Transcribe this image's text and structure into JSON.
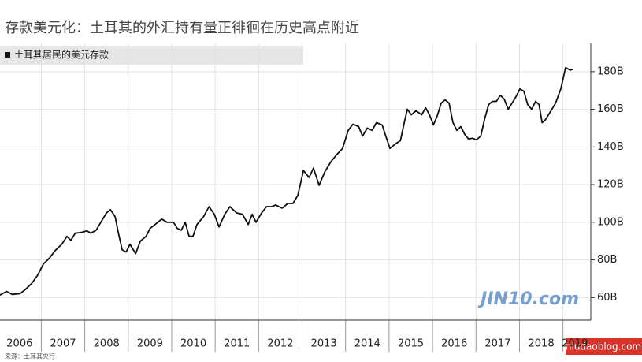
{
  "chart_data": {
    "type": "line",
    "title": "存款美元化：土耳其的外汇持有量正徘徊在历史高点附近",
    "source": "来源：土耳其央行",
    "watermarks": [
      "JIN10.com",
      "niudaoblog.com"
    ],
    "x": [
      2006.05,
      2006.2,
      2006.33,
      2006.51,
      2006.63,
      2006.78,
      2006.91,
      2007.05,
      2007.18,
      2007.32,
      2007.47,
      2007.59,
      2007.68,
      2007.78,
      2007.92,
      2008.05,
      2008.14,
      2008.26,
      2008.37,
      2008.5,
      2008.59,
      2008.7,
      2008.77,
      2008.86,
      2008.95,
      2009.04,
      2009.17,
      2009.28,
      2009.41,
      2009.5,
      2009.64,
      2009.77,
      2009.89,
      2010.04,
      2010.13,
      2010.22,
      2010.31,
      2010.4,
      2010.49,
      2010.58,
      2010.73,
      2010.86,
      2010.98,
      2011.09,
      2011.22,
      2011.34,
      2011.49,
      2011.63,
      2011.76,
      2011.85,
      2011.94,
      2012.07,
      2012.18,
      2012.3,
      2012.39,
      2012.54,
      2012.67,
      2012.79,
      2012.9,
      2013.03,
      2013.16,
      2013.26,
      2013.39,
      2013.52,
      2013.66,
      2013.81,
      2013.93,
      2014.06,
      2014.17,
      2014.3,
      2014.39,
      2014.5,
      2014.61,
      2014.71,
      2014.84,
      2014.93,
      2015.02,
      2015.15,
      2015.26,
      2015.35,
      2015.42,
      2015.51,
      2015.62,
      2015.75,
      2015.84,
      2015.93,
      2016.02,
      2016.11,
      2016.2,
      2016.29,
      2016.38,
      2016.47,
      2016.56,
      2016.65,
      2016.74,
      2016.83,
      2016.92,
      2017.01,
      2017.11,
      2017.2,
      2017.29,
      2017.38,
      2017.47,
      2017.56,
      2017.65,
      2017.74,
      2017.83,
      2017.92,
      2018.01,
      2018.1,
      2018.19,
      2018.28,
      2018.37,
      2018.45,
      2018.52,
      2018.59,
      2018.7,
      2018.83,
      2018.95,
      2019.06,
      2019.17,
      2019.24
    ],
    "series": [
      {
        "name": "土耳其居民的美元存款",
        "color": "#111111",
        "values": [
          61.3,
          63.3,
          61.7,
          62.1,
          64.2,
          67.5,
          71.7,
          77.9,
          80.8,
          85,
          88.3,
          92.5,
          90.4,
          94.2,
          94.6,
          95.4,
          94.2,
          95.8,
          100,
          105,
          106.7,
          102.9,
          94.6,
          85.4,
          84.2,
          88.3,
          83.3,
          90,
          92.5,
          96.7,
          99.2,
          101.7,
          100,
          100,
          96.7,
          95.8,
          100,
          92.5,
          92.5,
          98.8,
          102.9,
          108.3,
          104.2,
          97.5,
          104.2,
          108.3,
          105,
          104.2,
          98.8,
          104.2,
          100,
          105,
          108.3,
          108.3,
          109.2,
          107.5,
          110,
          110,
          114.2,
          127.5,
          123.8,
          128.8,
          119.6,
          126.7,
          132.1,
          136.3,
          139.2,
          148.8,
          152.1,
          150.8,
          145.8,
          150,
          148.8,
          152.9,
          151.7,
          145.4,
          139.2,
          141.7,
          143.3,
          152.9,
          160,
          157.1,
          159.2,
          157.1,
          160.8,
          157.1,
          151.7,
          156.7,
          163.3,
          165,
          163.3,
          152.9,
          148.8,
          150.8,
          146.7,
          144.2,
          144.6,
          143.8,
          145.8,
          155,
          162.5,
          164.2,
          164.2,
          167.5,
          165.4,
          160,
          163.3,
          166.7,
          170.8,
          169.6,
          162.5,
          160,
          164.2,
          162.5,
          152.9,
          154.2,
          158.3,
          163.3,
          170.8,
          182.1,
          180.8,
          181.3
        ]
      }
    ],
    "xlim": [
      2006.05,
      2019.55
    ],
    "xticks": [
      2006,
      2007,
      2008,
      2009,
      2010,
      2011,
      2012,
      2013,
      2014,
      2015,
      2016,
      2017,
      2018,
      2019
    ],
    "ylim": [
      48,
      195
    ],
    "yticks": [
      {
        "value": 60,
        "label": "60B"
      },
      {
        "value": 80,
        "label": "80B"
      },
      {
        "value": 100,
        "label": "100B"
      },
      {
        "value": 120,
        "label": "120B"
      },
      {
        "value": 140,
        "label": "140B"
      },
      {
        "value": 160,
        "label": "160B"
      },
      {
        "value": 180,
        "label": "180B"
      }
    ],
    "grid": true
  }
}
